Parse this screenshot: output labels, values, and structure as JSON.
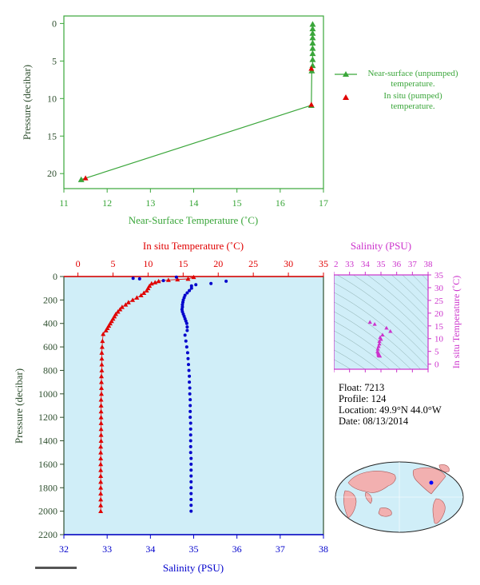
{
  "colors": {
    "green": "#3aa63a",
    "red": "#e00000",
    "blue": "#0000cc",
    "magenta": "#cc33cc",
    "bg_light_blue": "#d0eef8",
    "dark": "#2f4f2f"
  },
  "top_chart": {
    "xlabel": "Near-Surface Temperature (˚C)",
    "ylabel": "Pressure (decibar)",
    "xticks": [
      "11",
      "12",
      "13",
      "14",
      "15",
      "16",
      "17"
    ],
    "yticks": [
      "0",
      "5",
      "10",
      "15",
      "20"
    ],
    "legend": {
      "near_surface": "Near-surface (unpumped) temperature.",
      "insitu": "In situ (pumped) temperature."
    }
  },
  "main_chart": {
    "top_xlabel": "In situ Temperature (˚C)",
    "bottom_xlabel": "Salinity (PSU)",
    "ylabel": "Pressure (decibar)",
    "temp_ticks": [
      "0",
      "5",
      "10",
      "15",
      "20",
      "25",
      "30",
      "35"
    ],
    "sal_ticks": [
      "32",
      "33",
      "34",
      "35",
      "36",
      "37",
      "38"
    ],
    "pressure_ticks": [
      "0",
      "200",
      "400",
      "600",
      "800",
      "1000",
      "1200",
      "1400",
      "1600",
      "1800",
      "2000",
      "2200"
    ]
  },
  "ts_chart": {
    "title": "Salinity (PSU)",
    "ylabel": "In situ Temperature (˚C)",
    "xticks": [
      "32",
      "33",
      "34",
      "35",
      "36",
      "37",
      "38"
    ],
    "yticks": [
      "0",
      "5",
      "10",
      "15",
      "20",
      "25",
      "30",
      "35"
    ]
  },
  "info": {
    "float": "Float:  7213",
    "profile": "Profile:  124",
    "location": "Location:  49.9°N  44.0°W",
    "date": "Date:  08/13/2014"
  },
  "chart_data": [
    {
      "type": "line",
      "xlabel": "Near-Surface Temperature (˚C)",
      "ylabel": "Pressure (decibar)",
      "xlim": [
        11,
        17
      ],
      "ylim": [
        22,
        -1
      ],
      "series": [
        {
          "name": "Near-surface (unpumped) temperature.",
          "points": [
            [
              16.75,
              0.1
            ],
            [
              16.75,
              0.7
            ],
            [
              16.75,
              1.3
            ],
            [
              16.75,
              1.9
            ],
            [
              16.75,
              2.6
            ],
            [
              16.75,
              3.3
            ],
            [
              16.75,
              4.0
            ],
            [
              16.75,
              4.8
            ],
            [
              16.75,
              5.6
            ],
            [
              16.73,
              6.3
            ],
            [
              16.72,
              10.9
            ],
            [
              11.4,
              20.8
            ]
          ]
        },
        {
          "name": "In situ (pumped) temperature.",
          "points": [
            [
              16.72,
              6.0
            ],
            [
              16.72,
              10.8
            ],
            [
              11.5,
              20.6
            ]
          ]
        }
      ]
    },
    {
      "type": "scatter",
      "xlabel": "In situ Temperature (˚C)",
      "ylabel": "Pressure (decibar)",
      "xlim": [
        -2,
        35
      ],
      "ylim": [
        2200,
        0
      ],
      "series": [
        {
          "name": "In situ Temperature (˚C)",
          "points": [
            [
              16.5,
              5
            ],
            [
              15.7,
              20
            ],
            [
              14.2,
              25
            ],
            [
              12.9,
              30
            ],
            [
              11.5,
              40
            ],
            [
              11,
              50
            ],
            [
              10.5,
              60
            ],
            [
              10.2,
              80
            ],
            [
              10,
              100
            ],
            [
              9.8,
              120
            ],
            [
              9.4,
              140
            ],
            [
              9,
              160
            ],
            [
              8.4,
              180
            ],
            [
              7.8,
              200
            ],
            [
              7.2,
              220
            ],
            [
              6.8,
              240
            ],
            [
              6.3,
              260
            ],
            [
              6,
              280
            ],
            [
              5.7,
              300
            ],
            [
              5.4,
              320
            ],
            [
              5.2,
              340
            ],
            [
              5,
              360
            ],
            [
              4.8,
              380
            ],
            [
              4.6,
              400
            ],
            [
              4.4,
              420
            ],
            [
              4.2,
              440
            ],
            [
              4,
              460
            ],
            [
              3.6,
              490
            ],
            [
              3.5,
              550
            ],
            [
              3.45,
              600
            ],
            [
              3.4,
              650
            ],
            [
              3.4,
              700
            ],
            [
              3.4,
              750
            ],
            [
              3.4,
              800
            ],
            [
              3.35,
              850
            ],
            [
              3.35,
              900
            ],
            [
              3.35,
              950
            ],
            [
              3.35,
              1000
            ],
            [
              3.3,
              1050
            ],
            [
              3.3,
              1100
            ],
            [
              3.3,
              1150
            ],
            [
              3.3,
              1200
            ],
            [
              3.3,
              1250
            ],
            [
              3.3,
              1300
            ],
            [
              3.3,
              1350
            ],
            [
              3.3,
              1400
            ],
            [
              3.25,
              1450
            ],
            [
              3.25,
              1500
            ],
            [
              3.25,
              1550
            ],
            [
              3.25,
              1600
            ],
            [
              3.25,
              1650
            ],
            [
              3.25,
              1700
            ],
            [
              3.25,
              1750
            ],
            [
              3.25,
              1800
            ],
            [
              3.25,
              1850
            ],
            [
              3.25,
              1900
            ],
            [
              3.25,
              1950
            ],
            [
              3.25,
              2000
            ]
          ]
        }
      ]
    },
    {
      "type": "scatter",
      "xlabel": "Salinity (PSU)",
      "ylabel": "Pressure (decibar)",
      "xlim": [
        32,
        38
      ],
      "ylim": [
        2200,
        0
      ],
      "series": [
        {
          "name": "Salinity (PSU)",
          "points": [
            [
              35.75,
              40
            ],
            [
              35.4,
              60
            ],
            [
              35.05,
              70
            ],
            [
              34.95,
              80
            ],
            [
              34.6,
              5
            ],
            [
              34.3,
              35
            ],
            [
              33.6,
              15
            ],
            [
              33.75,
              20
            ],
            [
              34.95,
              100
            ],
            [
              34.9,
              120
            ],
            [
              34.85,
              140
            ],
            [
              34.8,
              160
            ],
            [
              34.78,
              180
            ],
            [
              34.76,
              200
            ],
            [
              34.75,
              220
            ],
            [
              34.74,
              240
            ],
            [
              34.74,
              260
            ],
            [
              34.73,
              280
            ],
            [
              34.74,
              300
            ],
            [
              34.76,
              320
            ],
            [
              34.78,
              340
            ],
            [
              34.8,
              360
            ],
            [
              34.82,
              380
            ],
            [
              34.84,
              400
            ],
            [
              34.85,
              430
            ],
            [
              34.85,
              460
            ],
            [
              34.8,
              500
            ],
            [
              34.82,
              550
            ],
            [
              34.84,
              600
            ],
            [
              34.86,
              650
            ],
            [
              34.87,
              700
            ],
            [
              34.88,
              750
            ],
            [
              34.89,
              800
            ],
            [
              34.9,
              850
            ],
            [
              34.9,
              900
            ],
            [
              34.91,
              950
            ],
            [
              34.91,
              1000
            ],
            [
              34.92,
              1050
            ],
            [
              34.92,
              1100
            ],
            [
              34.92,
              1150
            ],
            [
              34.92,
              1200
            ],
            [
              34.93,
              1250
            ],
            [
              34.93,
              1300
            ],
            [
              34.93,
              1350
            ],
            [
              34.93,
              1400
            ],
            [
              34.93,
              1450
            ],
            [
              34.93,
              1500
            ],
            [
              34.94,
              1550
            ],
            [
              34.94,
              1600
            ],
            [
              34.94,
              1650
            ],
            [
              34.94,
              1700
            ],
            [
              34.94,
              1750
            ],
            [
              34.94,
              1800
            ],
            [
              34.94,
              1850
            ],
            [
              34.94,
              1900
            ],
            [
              34.94,
              1950
            ],
            [
              34.94,
              2000
            ]
          ]
        }
      ]
    },
    {
      "type": "scatter",
      "title": "Salinity (PSU)",
      "ylabel": "In situ Temperature (˚C)",
      "xlim": [
        32,
        38
      ],
      "ylim": [
        -2,
        35
      ],
      "series": [
        {
          "name": "T-S",
          "points": [
            [
              34.3,
              16.5
            ],
            [
              34.6,
              15.7
            ],
            [
              35.35,
              14.2
            ],
            [
              35.6,
              12.9
            ],
            [
              35.1,
              11.5
            ],
            [
              34.95,
              10.5
            ],
            [
              35.0,
              9.8
            ],
            [
              34.9,
              9
            ],
            [
              34.9,
              8
            ],
            [
              34.85,
              7
            ],
            [
              34.8,
              6
            ],
            [
              34.78,
              5
            ],
            [
              34.82,
              4.5
            ],
            [
              34.84,
              4
            ],
            [
              34.85,
              3.5
            ],
            [
              34.87,
              3.4
            ],
            [
              34.9,
              3.3
            ],
            [
              34.93,
              3.25
            ]
          ]
        }
      ]
    }
  ]
}
